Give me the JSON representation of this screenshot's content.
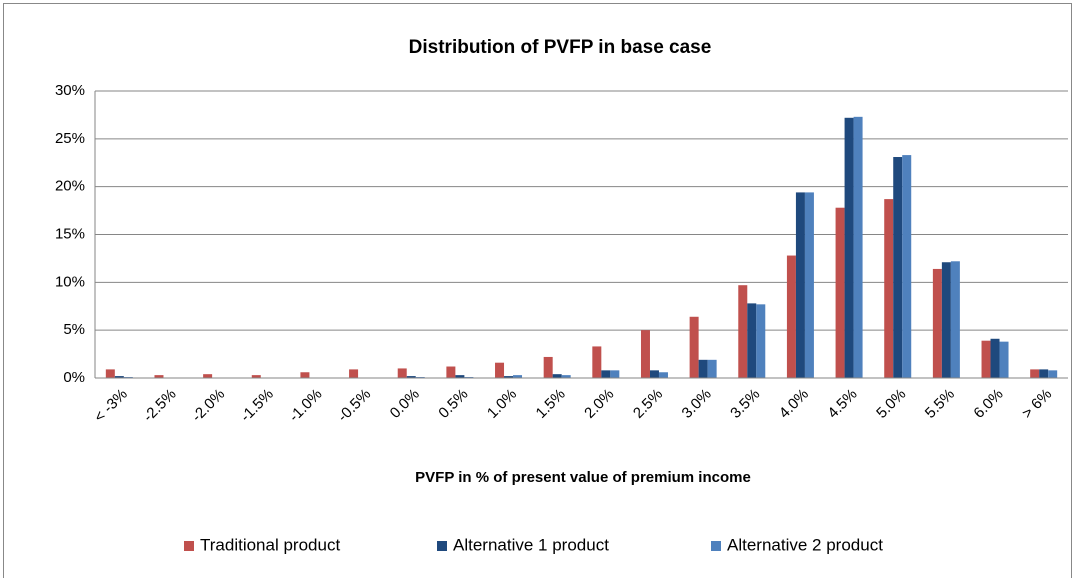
{
  "chart_data": {
    "type": "bar",
    "title": "Distribution of PVFP in base case",
    "x_label": "PVFP in % of present value of premium income",
    "categories": [
      "< -3%",
      "-2.5%",
      "-2.0%",
      "-1.5%",
      "-1.0%",
      "-0.5%",
      "0.0%",
      "0.5%",
      "1.0%",
      "1.5%",
      "2.0%",
      "2.5%",
      "3.0%",
      "3.5%",
      "4.0%",
      "4.5%",
      "5.0%",
      "5.5%",
      "6.0%",
      "> 6%"
    ],
    "series": [
      {
        "name": "Traditional product",
        "color": "#c0504d",
        "values": [
          0.9,
          0.3,
          0.4,
          0.3,
          0.6,
          0.9,
          1.0,
          1.2,
          1.6,
          2.2,
          3.3,
          5.0,
          6.4,
          9.7,
          12.8,
          17.8,
          18.7,
          11.4,
          3.9,
          0.9
        ]
      },
      {
        "name": "Alternative 1 product",
        "color": "#1f497d",
        "values": [
          0.2,
          0,
          0,
          0,
          0,
          0,
          0.2,
          0.3,
          0.2,
          0.4,
          0.8,
          0.8,
          1.9,
          7.8,
          19.4,
          27.2,
          23.1,
          12.1,
          4.1,
          0.9
        ]
      },
      {
        "name": "Alternative 2 product",
        "color": "#4f81bd",
        "values": [
          0.1,
          0,
          0,
          0,
          0,
          0,
          0.1,
          0.1,
          0.3,
          0.3,
          0.8,
          0.6,
          1.9,
          7.7,
          19.4,
          27.3,
          23.3,
          12.2,
          3.8,
          0.8
        ]
      }
    ],
    "ylim": [
      0,
      30
    ],
    "yticks": [
      {
        "value": 0,
        "label": "0%"
      },
      {
        "value": 5,
        "label": "5%"
      },
      {
        "value": 10,
        "label": "10%"
      },
      {
        "value": 15,
        "label": "15%"
      },
      {
        "value": 20,
        "label": "20%"
      },
      {
        "value": 25,
        "label": "25%"
      },
      {
        "value": 30,
        "label": "30%"
      }
    ],
    "grid": true,
    "legend": "bottom"
  }
}
